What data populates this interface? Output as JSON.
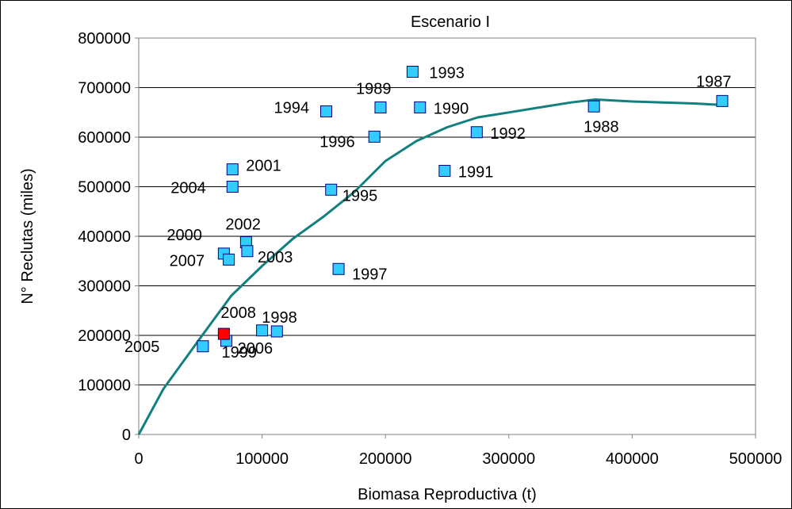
{
  "chart_data": {
    "type": "scatter",
    "title": "Escenario I",
    "xlabel": "Biomasa Reproductiva (t)",
    "ylabel": "N° Reclutas (miles)",
    "xlim": [
      0,
      500000
    ],
    "ylim": [
      0,
      800000
    ],
    "xticks": [
      "0",
      "100000",
      "200000",
      "300000",
      "400000",
      "500000"
    ],
    "yticks": [
      "0",
      "100000",
      "200000",
      "300000",
      "400000",
      "500000",
      "600000",
      "700000",
      "800000"
    ],
    "grid": "horizontal",
    "series": [
      {
        "kind": "points",
        "color": "#33ccff",
        "points": [
          {
            "label": "1987",
            "x": 473000,
            "y": 673000
          },
          {
            "label": "1988",
            "x": 369000,
            "y": 662000
          },
          {
            "label": "1989",
            "x": 196000,
            "y": 660000
          },
          {
            "label": "1990",
            "x": 228000,
            "y": 660000
          },
          {
            "label": "1991",
            "x": 248000,
            "y": 532000
          },
          {
            "label": "1992",
            "x": 274000,
            "y": 610000
          },
          {
            "label": "1993",
            "x": 222000,
            "y": 732000
          },
          {
            "label": "1994",
            "x": 152000,
            "y": 652000
          },
          {
            "label": "1995",
            "x": 156000,
            "y": 494000
          },
          {
            "label": "1996",
            "x": 191000,
            "y": 601000
          },
          {
            "label": "1997",
            "x": 162000,
            "y": 334000
          },
          {
            "label": "1998",
            "x": 112000,
            "y": 208000
          },
          {
            "label": "1999",
            "x": 71000,
            "y": 189000
          },
          {
            "label": "2000",
            "x": 69000,
            "y": 365000
          },
          {
            "label": "2001",
            "x": 76000,
            "y": 535000
          },
          {
            "label": "2002",
            "x": 87000,
            "y": 388000
          },
          {
            "label": "2003",
            "x": 88000,
            "y": 370000
          },
          {
            "label": "2004",
            "x": 76000,
            "y": 500000
          },
          {
            "label": "2005",
            "x": 52000,
            "y": 178000
          },
          {
            "label": "2006",
            "x": 100000,
            "y": 210000
          },
          {
            "label": "2007",
            "x": 73000,
            "y": 353000
          }
        ]
      },
      {
        "kind": "points",
        "color": "#ff0000",
        "points": [
          {
            "label": "2008",
            "x": 69000,
            "y": 203000
          }
        ]
      },
      {
        "kind": "line",
        "color": "#138080",
        "x": [
          0,
          20000,
          50000,
          75000,
          100000,
          125000,
          150000,
          175000,
          200000,
          225000,
          250000,
          275000,
          300000,
          325000,
          350000,
          370000,
          400000,
          450000,
          473000
        ],
        "y": [
          0,
          92000,
          195000,
          280000,
          340000,
          395000,
          440000,
          490000,
          552000,
          592000,
          620000,
          640000,
          650000,
          660000,
          670000,
          676000,
          672000,
          668000,
          665000
        ]
      }
    ]
  }
}
